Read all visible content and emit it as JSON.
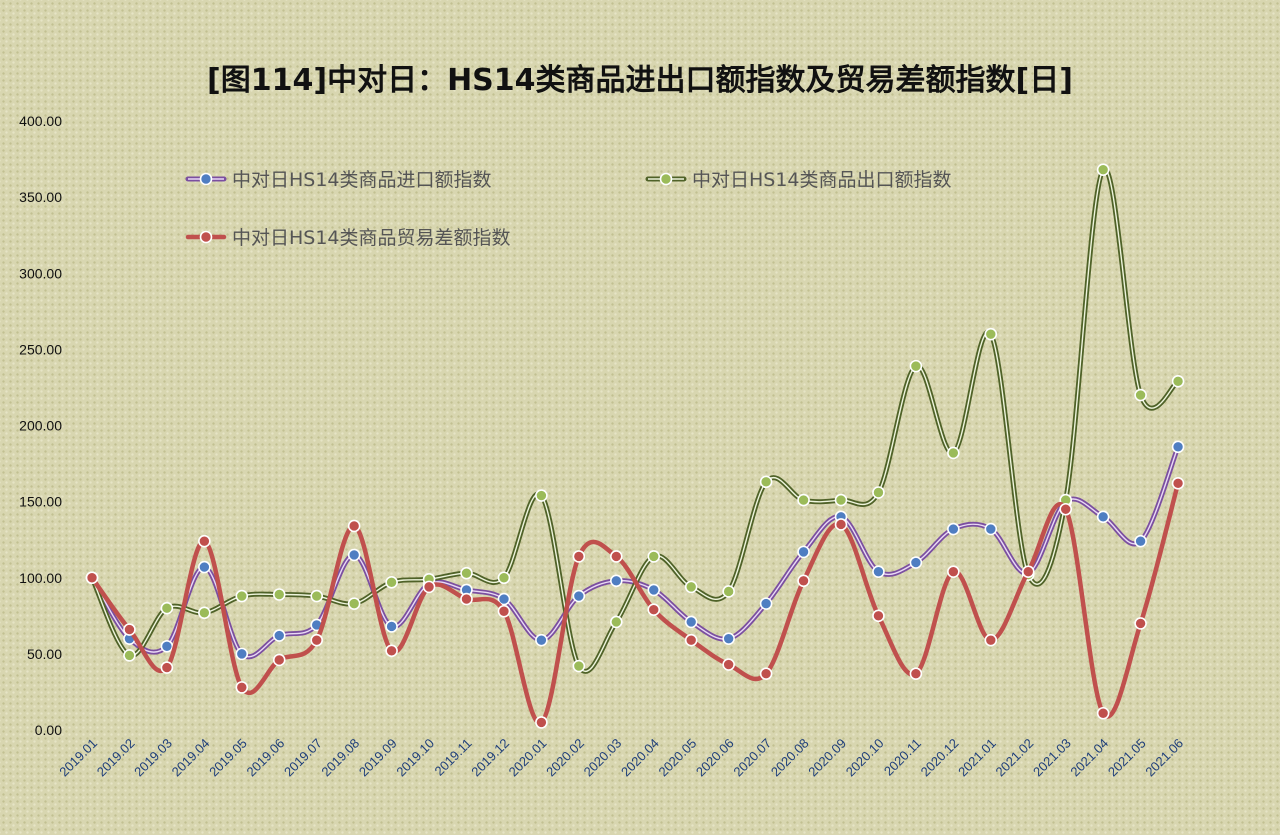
{
  "chart_data": {
    "type": "line",
    "title": "[图114]中对日：HS14类商品进出口额指数及贸易差额指数[日]",
    "xlabel": "",
    "ylabel": "",
    "ylim": [
      0,
      400
    ],
    "yticks": [
      "0.00",
      "50.00",
      "100.00",
      "150.00",
      "200.00",
      "250.00",
      "300.00",
      "350.00",
      "400.00"
    ],
    "grid": false,
    "legend_position": "top-left",
    "categories": [
      "2019.01",
      "2019.02",
      "2019.03",
      "2019.04",
      "2019.05",
      "2019.06",
      "2019.07",
      "2019.08",
      "2019.09",
      "2019.10",
      "2019.11",
      "2019.12",
      "2020.01",
      "2020.02",
      "2020.03",
      "2020.04",
      "2020.05",
      "2020.06",
      "2020.07",
      "2020.08",
      "2020.09",
      "2020.10",
      "2020.11",
      "2020.12",
      "2021.01",
      "2021.02",
      "2021.03",
      "2021.04",
      "2021.05",
      "2021.06"
    ],
    "series": [
      {
        "name": "中对日HS14类商品进口额指数",
        "color": "#7b4fa0",
        "marker_color": "#4f7ec2",
        "values": [
          100,
          60,
          55,
          107,
          50,
          62,
          69,
          115,
          68,
          96,
          92,
          86,
          59,
          88,
          98,
          92,
          71,
          60,
          83,
          117,
          140,
          104,
          110,
          132,
          132,
          103,
          150,
          140,
          124,
          186
        ]
      },
      {
        "name": "中对日HS14类商品出口额指数",
        "color": "#4f6228",
        "marker_color": "#9bbb59",
        "values": [
          100,
          49,
          80,
          77,
          88,
          89,
          88,
          83,
          97,
          99,
          103,
          100,
          154,
          42,
          71,
          114,
          94,
          91,
          163,
          151,
          151,
          156,
          239,
          182,
          260,
          102,
          151,
          368,
          220,
          229
        ]
      },
      {
        "name": "中对日HS14类商品贸易差额指数",
        "color": "#c0504d",
        "marker_color": "#c0504d",
        "values": [
          100,
          66,
          41,
          124,
          28,
          46,
          59,
          134,
          52,
          94,
          86,
          78,
          5,
          114,
          114,
          79,
          59,
          43,
          37,
          98,
          135,
          75,
          37,
          104,
          59,
          104,
          145,
          11,
          70,
          162
        ]
      }
    ]
  }
}
